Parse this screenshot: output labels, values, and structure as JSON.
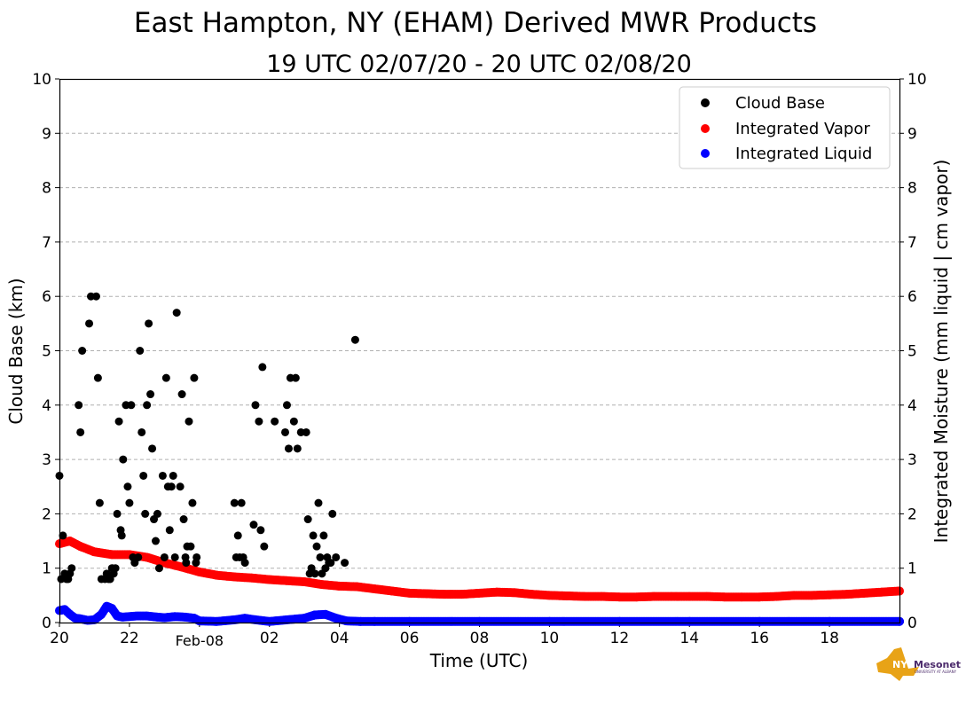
{
  "title": "East Hampton, NY (EHAM) Derived MWR Products",
  "subtitle": "19 UTC 02/07/20 - 20 UTC 02/08/20",
  "logo": {
    "text": "Mesonet",
    "sub": "UNIVERSITY AT ALBANY",
    "prefix": "NYS",
    "color": "#e8a317"
  },
  "colors": {
    "cloud_base": "#000000",
    "vapor": "#ff0000",
    "liquid": "#0000ff",
    "grid": "#b0b0b0"
  },
  "chart_data": {
    "type": "scatter",
    "xlabel": "Time (UTC)",
    "ylabel": "Cloud Base (km)",
    "ylabel_right": "Integrated Moisture (mm liquid | cm vapor)",
    "x_unit": "hours since 20 UTC 02/07/20",
    "xlim": [
      0,
      24
    ],
    "ylim": [
      0,
      10
    ],
    "y_ticks": [
      "0",
      "1",
      "2",
      "3",
      "4",
      "5",
      "6",
      "7",
      "8",
      "9",
      "10"
    ],
    "x_ticks": [
      {
        "x": 0,
        "label": "20"
      },
      {
        "x": 2,
        "label": "22"
      },
      {
        "x": 4,
        "label": "Feb-08"
      },
      {
        "x": 6,
        "label": "02"
      },
      {
        "x": 8,
        "label": "04"
      },
      {
        "x": 10,
        "label": "06"
      },
      {
        "x": 12,
        "label": "08"
      },
      {
        "x": 14,
        "label": "10"
      },
      {
        "x": 16,
        "label": "12"
      },
      {
        "x": 18,
        "label": "14"
      },
      {
        "x": 20,
        "label": "16"
      },
      {
        "x": 22,
        "label": "18"
      }
    ],
    "grid": "horizontal dashed",
    "legend_position": "top-right",
    "series": [
      {
        "name": "Cloud Base",
        "points": [
          [
            0.0,
            2.7
          ],
          [
            0.05,
            0.8
          ],
          [
            0.1,
            1.6
          ],
          [
            0.15,
            0.9
          ],
          [
            0.2,
            0.8
          ],
          [
            0.25,
            0.8
          ],
          [
            0.3,
            0.9
          ],
          [
            0.35,
            1.0
          ],
          [
            0.55,
            4.0
          ],
          [
            0.6,
            3.5
          ],
          [
            0.65,
            5.0
          ],
          [
            0.85,
            5.5
          ],
          [
            0.9,
            6.0
          ],
          [
            1.05,
            6.0
          ],
          [
            1.1,
            4.5
          ],
          [
            1.15,
            2.2
          ],
          [
            1.2,
            0.8
          ],
          [
            1.3,
            0.8
          ],
          [
            1.35,
            0.9
          ],
          [
            1.4,
            0.8
          ],
          [
            1.45,
            0.8
          ],
          [
            1.5,
            1.0
          ],
          [
            1.55,
            0.9
          ],
          [
            1.6,
            1.0
          ],
          [
            1.65,
            2.0
          ],
          [
            1.7,
            3.7
          ],
          [
            1.75,
            1.7
          ],
          [
            1.78,
            1.6
          ],
          [
            1.82,
            3.0
          ],
          [
            1.9,
            4.0
          ],
          [
            1.95,
            2.5
          ],
          [
            2.0,
            2.2
          ],
          [
            2.05,
            4.0
          ],
          [
            2.1,
            1.2
          ],
          [
            2.15,
            1.1
          ],
          [
            2.25,
            1.2
          ],
          [
            2.3,
            5.0
          ],
          [
            2.35,
            3.5
          ],
          [
            2.4,
            2.7
          ],
          [
            2.45,
            2.0
          ],
          [
            2.5,
            4.0
          ],
          [
            2.55,
            5.5
          ],
          [
            2.6,
            4.2
          ],
          [
            2.65,
            3.2
          ],
          [
            2.7,
            1.9
          ],
          [
            2.75,
            1.5
          ],
          [
            2.8,
            2.0
          ],
          [
            2.85,
            1.0
          ],
          [
            2.95,
            2.7
          ],
          [
            3.0,
            1.2
          ],
          [
            3.05,
            4.5
          ],
          [
            3.1,
            2.5
          ],
          [
            3.15,
            1.7
          ],
          [
            3.2,
            2.5
          ],
          [
            3.25,
            2.7
          ],
          [
            3.3,
            1.2
          ],
          [
            3.35,
            5.7
          ],
          [
            3.45,
            2.5
          ],
          [
            3.5,
            4.2
          ],
          [
            3.55,
            1.9
          ],
          [
            3.6,
            1.2
          ],
          [
            3.62,
            1.1
          ],
          [
            3.65,
            1.4
          ],
          [
            3.7,
            3.7
          ],
          [
            3.75,
            1.4
          ],
          [
            3.8,
            2.2
          ],
          [
            3.85,
            4.5
          ],
          [
            3.9,
            1.1
          ],
          [
            3.92,
            1.2
          ],
          [
            5.0,
            2.2
          ],
          [
            5.05,
            1.2
          ],
          [
            5.1,
            1.6
          ],
          [
            5.15,
            1.2
          ],
          [
            5.2,
            2.2
          ],
          [
            5.25,
            1.2
          ],
          [
            5.3,
            1.1
          ],
          [
            5.55,
            1.8
          ],
          [
            5.6,
            4.0
          ],
          [
            5.7,
            3.7
          ],
          [
            5.75,
            1.7
          ],
          [
            5.8,
            4.7
          ],
          [
            5.85,
            1.4
          ],
          [
            6.15,
            3.7
          ],
          [
            6.45,
            3.5
          ],
          [
            6.5,
            4.0
          ],
          [
            6.55,
            3.2
          ],
          [
            6.6,
            4.5
          ],
          [
            6.7,
            3.7
          ],
          [
            6.75,
            4.5
          ],
          [
            6.8,
            3.2
          ],
          [
            6.9,
            3.5
          ],
          [
            7.05,
            3.5
          ],
          [
            7.1,
            1.9
          ],
          [
            7.15,
            0.9
          ],
          [
            7.2,
            1.0
          ],
          [
            7.25,
            1.6
          ],
          [
            7.3,
            0.9
          ],
          [
            7.35,
            1.4
          ],
          [
            7.4,
            2.2
          ],
          [
            7.45,
            1.2
          ],
          [
            7.5,
            0.9
          ],
          [
            7.55,
            1.6
          ],
          [
            7.6,
            1.0
          ],
          [
            7.65,
            1.2
          ],
          [
            7.7,
            1.1
          ],
          [
            7.75,
            1.1
          ],
          [
            7.8,
            2.0
          ],
          [
            7.9,
            1.2
          ],
          [
            8.15,
            1.1
          ],
          [
            8.45,
            5.2
          ]
        ]
      },
      {
        "name": "Integrated Vapor",
        "points": [
          [
            0,
            1.45
          ],
          [
            0.3,
            1.5
          ],
          [
            0.6,
            1.4
          ],
          [
            1.0,
            1.3
          ],
          [
            1.5,
            1.25
          ],
          [
            2.0,
            1.25
          ],
          [
            2.5,
            1.2
          ],
          [
            3.0,
            1.1
          ],
          [
            3.5,
            1.02
          ],
          [
            4.0,
            0.93
          ],
          [
            4.5,
            0.87
          ],
          [
            5.0,
            0.84
          ],
          [
            5.5,
            0.82
          ],
          [
            6.0,
            0.79
          ],
          [
            6.5,
            0.77
          ],
          [
            7.0,
            0.75
          ],
          [
            7.5,
            0.7
          ],
          [
            8.0,
            0.67
          ],
          [
            8.5,
            0.66
          ],
          [
            9.0,
            0.62
          ],
          [
            9.5,
            0.58
          ],
          [
            10.0,
            0.54
          ],
          [
            10.5,
            0.53
          ],
          [
            11.0,
            0.52
          ],
          [
            11.5,
            0.52
          ],
          [
            12.0,
            0.54
          ],
          [
            12.5,
            0.56
          ],
          [
            13.0,
            0.55
          ],
          [
            13.5,
            0.52
          ],
          [
            14.0,
            0.5
          ],
          [
            14.5,
            0.49
          ],
          [
            15.0,
            0.48
          ],
          [
            15.5,
            0.48
          ],
          [
            16.0,
            0.47
          ],
          [
            16.5,
            0.47
          ],
          [
            17.0,
            0.48
          ],
          [
            17.5,
            0.48
          ],
          [
            18.0,
            0.48
          ],
          [
            18.5,
            0.48
          ],
          [
            19.0,
            0.47
          ],
          [
            19.5,
            0.47
          ],
          [
            20.0,
            0.47
          ],
          [
            20.5,
            0.48
          ],
          [
            21.0,
            0.5
          ],
          [
            21.5,
            0.5
          ],
          [
            22.0,
            0.51
          ],
          [
            22.5,
            0.52
          ],
          [
            23.0,
            0.54
          ],
          [
            23.5,
            0.56
          ],
          [
            24.0,
            0.58
          ]
        ]
      },
      {
        "name": "Integrated Liquid",
        "points": [
          [
            0,
            0.22
          ],
          [
            0.15,
            0.24
          ],
          [
            0.3,
            0.15
          ],
          [
            0.45,
            0.08
          ],
          [
            0.6,
            0.07
          ],
          [
            0.8,
            0.04
          ],
          [
            1.0,
            0.05
          ],
          [
            1.2,
            0.15
          ],
          [
            1.35,
            0.3
          ],
          [
            1.5,
            0.26
          ],
          [
            1.65,
            0.12
          ],
          [
            1.8,
            0.1
          ],
          [
            2.0,
            0.11
          ],
          [
            2.2,
            0.12
          ],
          [
            2.5,
            0.12
          ],
          [
            2.8,
            0.1
          ],
          [
            3.0,
            0.09
          ],
          [
            3.3,
            0.11
          ],
          [
            3.6,
            0.1
          ],
          [
            3.85,
            0.08
          ],
          [
            4.0,
            0.03
          ],
          [
            4.5,
            0.02
          ],
          [
            5.0,
            0.05
          ],
          [
            5.3,
            0.08
          ],
          [
            5.6,
            0.05
          ],
          [
            6.0,
            0.02
          ],
          [
            6.5,
            0.05
          ],
          [
            7.0,
            0.08
          ],
          [
            7.3,
            0.14
          ],
          [
            7.6,
            0.15
          ],
          [
            7.9,
            0.08
          ],
          [
            8.2,
            0.03
          ],
          [
            8.6,
            0.02
          ],
          [
            9.0,
            0.02
          ],
          [
            10.0,
            0.02
          ],
          [
            12.0,
            0.02
          ],
          [
            14.0,
            0.02
          ],
          [
            16.0,
            0.02
          ],
          [
            18.0,
            0.02
          ],
          [
            20.0,
            0.02
          ],
          [
            22.0,
            0.02
          ],
          [
            24.0,
            0.02
          ]
        ]
      }
    ]
  }
}
